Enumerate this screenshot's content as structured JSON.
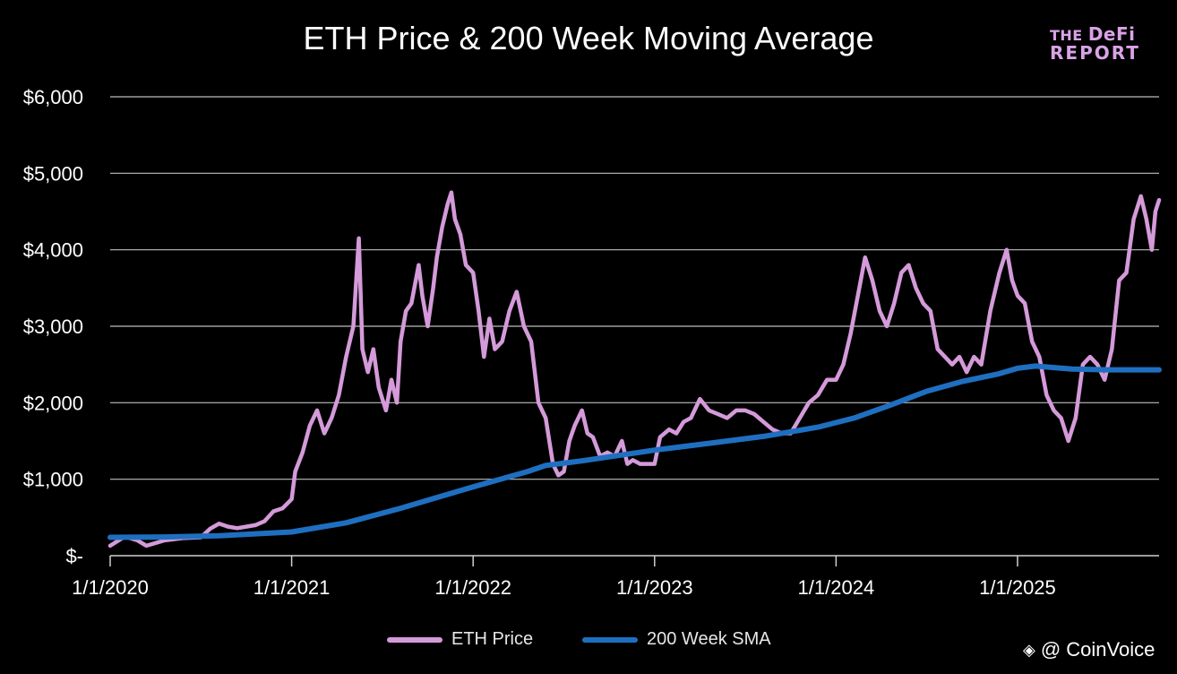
{
  "chart_data": {
    "type": "line",
    "title": "ETH Price & 200 Week Moving Average",
    "xlabel": "",
    "ylabel": "",
    "ylim": [
      0,
      6000
    ],
    "y_ticks": [
      0,
      1000,
      2000,
      3000,
      4000,
      5000,
      6000
    ],
    "y_tick_labels": [
      "$-",
      "$1,000",
      "$2,000",
      "$3,000",
      "$4,000",
      "$5,000",
      "$6,000"
    ],
    "x_range": [
      2020.0,
      2025.78
    ],
    "x_ticks": [
      2020,
      2021,
      2022,
      2023,
      2024,
      2025
    ],
    "x_tick_labels": [
      "1/1/2020",
      "1/1/2021",
      "1/1/2022",
      "1/1/2023",
      "1/1/2024",
      "1/1/2025"
    ],
    "grid": "horizontal",
    "legend_position": "bottom",
    "series": [
      {
        "name": "ETH Price",
        "color": "#d49ad9",
        "points": [
          [
            2020.0,
            130
          ],
          [
            2020.08,
            250
          ],
          [
            2020.15,
            200
          ],
          [
            2020.2,
            130
          ],
          [
            2020.3,
            200
          ],
          [
            2020.4,
            230
          ],
          [
            2020.5,
            240
          ],
          [
            2020.55,
            350
          ],
          [
            2020.6,
            420
          ],
          [
            2020.65,
            380
          ],
          [
            2020.7,
            360
          ],
          [
            2020.75,
            380
          ],
          [
            2020.8,
            400
          ],
          [
            2020.85,
            450
          ],
          [
            2020.9,
            580
          ],
          [
            2020.95,
            620
          ],
          [
            2021.0,
            740
          ],
          [
            2021.02,
            1100
          ],
          [
            2021.06,
            1350
          ],
          [
            2021.1,
            1700
          ],
          [
            2021.14,
            1900
          ],
          [
            2021.18,
            1600
          ],
          [
            2021.22,
            1800
          ],
          [
            2021.26,
            2100
          ],
          [
            2021.3,
            2600
          ],
          [
            2021.34,
            3000
          ],
          [
            2021.37,
            4150
          ],
          [
            2021.39,
            2700
          ],
          [
            2021.42,
            2400
          ],
          [
            2021.45,
            2700
          ],
          [
            2021.48,
            2200
          ],
          [
            2021.52,
            1900
          ],
          [
            2021.55,
            2300
          ],
          [
            2021.58,
            2000
          ],
          [
            2021.6,
            2800
          ],
          [
            2021.63,
            3200
          ],
          [
            2021.66,
            3300
          ],
          [
            2021.7,
            3800
          ],
          [
            2021.72,
            3400
          ],
          [
            2021.75,
            3000
          ],
          [
            2021.78,
            3500
          ],
          [
            2021.8,
            3900
          ],
          [
            2021.83,
            4300
          ],
          [
            2021.86,
            4600
          ],
          [
            2021.88,
            4750
          ],
          [
            2021.9,
            4400
          ],
          [
            2021.93,
            4200
          ],
          [
            2021.96,
            3800
          ],
          [
            2022.0,
            3700
          ],
          [
            2022.03,
            3200
          ],
          [
            2022.06,
            2600
          ],
          [
            2022.09,
            3100
          ],
          [
            2022.12,
            2700
          ],
          [
            2022.16,
            2800
          ],
          [
            2022.2,
            3200
          ],
          [
            2022.24,
            3450
          ],
          [
            2022.28,
            3000
          ],
          [
            2022.32,
            2800
          ],
          [
            2022.36,
            2000
          ],
          [
            2022.4,
            1800
          ],
          [
            2022.44,
            1200
          ],
          [
            2022.47,
            1050
          ],
          [
            2022.5,
            1100
          ],
          [
            2022.53,
            1500
          ],
          [
            2022.56,
            1700
          ],
          [
            2022.6,
            1900
          ],
          [
            2022.63,
            1600
          ],
          [
            2022.66,
            1550
          ],
          [
            2022.7,
            1300
          ],
          [
            2022.74,
            1350
          ],
          [
            2022.78,
            1300
          ],
          [
            2022.82,
            1500
          ],
          [
            2022.85,
            1200
          ],
          [
            2022.88,
            1250
          ],
          [
            2022.92,
            1200
          ],
          [
            2022.96,
            1200
          ],
          [
            2023.0,
            1200
          ],
          [
            2023.03,
            1550
          ],
          [
            2023.08,
            1650
          ],
          [
            2023.12,
            1600
          ],
          [
            2023.16,
            1750
          ],
          [
            2023.2,
            1800
          ],
          [
            2023.25,
            2050
          ],
          [
            2023.3,
            1900
          ],
          [
            2023.35,
            1850
          ],
          [
            2023.4,
            1800
          ],
          [
            2023.45,
            1900
          ],
          [
            2023.5,
            1900
          ],
          [
            2023.55,
            1850
          ],
          [
            2023.6,
            1750
          ],
          [
            2023.65,
            1650
          ],
          [
            2023.7,
            1600
          ],
          [
            2023.75,
            1600
          ],
          [
            2023.8,
            1800
          ],
          [
            2023.85,
            2000
          ],
          [
            2023.9,
            2100
          ],
          [
            2023.95,
            2300
          ],
          [
            2024.0,
            2300
          ],
          [
            2024.04,
            2500
          ],
          [
            2024.08,
            2900
          ],
          [
            2024.12,
            3400
          ],
          [
            2024.16,
            3900
          ],
          [
            2024.2,
            3600
          ],
          [
            2024.24,
            3200
          ],
          [
            2024.28,
            3000
          ],
          [
            2024.32,
            3300
          ],
          [
            2024.36,
            3700
          ],
          [
            2024.4,
            3800
          ],
          [
            2024.44,
            3500
          ],
          [
            2024.48,
            3300
          ],
          [
            2024.52,
            3200
          ],
          [
            2024.56,
            2700
          ],
          [
            2024.6,
            2600
          ],
          [
            2024.64,
            2500
          ],
          [
            2024.68,
            2600
          ],
          [
            2024.72,
            2400
          ],
          [
            2024.76,
            2600
          ],
          [
            2024.8,
            2500
          ],
          [
            2024.85,
            3200
          ],
          [
            2024.9,
            3700
          ],
          [
            2024.94,
            4000
          ],
          [
            2024.97,
            3600
          ],
          [
            2025.0,
            3400
          ],
          [
            2025.04,
            3300
          ],
          [
            2025.08,
            2800
          ],
          [
            2025.12,
            2600
          ],
          [
            2025.16,
            2100
          ],
          [
            2025.2,
            1900
          ],
          [
            2025.24,
            1800
          ],
          [
            2025.28,
            1500
          ],
          [
            2025.32,
            1800
          ],
          [
            2025.36,
            2500
          ],
          [
            2025.4,
            2600
          ],
          [
            2025.44,
            2500
          ],
          [
            2025.48,
            2300
          ],
          [
            2025.52,
            2700
          ],
          [
            2025.56,
            3600
          ],
          [
            2025.6,
            3700
          ],
          [
            2025.64,
            4400
          ],
          [
            2025.68,
            4700
          ],
          [
            2025.71,
            4400
          ],
          [
            2025.74,
            4000
          ],
          [
            2025.76,
            4500
          ],
          [
            2025.78,
            4650
          ]
        ]
      },
      {
        "name": "200 Week SMA",
        "color": "#1f6fc0",
        "points": [
          [
            2020.0,
            240
          ],
          [
            2020.3,
            245
          ],
          [
            2020.6,
            260
          ],
          [
            2021.0,
            310
          ],
          [
            2021.3,
            430
          ],
          [
            2021.6,
            620
          ],
          [
            2021.8,
            760
          ],
          [
            2022.0,
            900
          ],
          [
            2022.3,
            1100
          ],
          [
            2022.4,
            1180
          ],
          [
            2022.6,
            1240
          ],
          [
            2022.8,
            1310
          ],
          [
            2023.0,
            1380
          ],
          [
            2023.3,
            1470
          ],
          [
            2023.6,
            1560
          ],
          [
            2023.9,
            1680
          ],
          [
            2024.1,
            1800
          ],
          [
            2024.3,
            1970
          ],
          [
            2024.5,
            2150
          ],
          [
            2024.7,
            2280
          ],
          [
            2024.9,
            2380
          ],
          [
            2025.0,
            2450
          ],
          [
            2025.1,
            2480
          ],
          [
            2025.2,
            2460
          ],
          [
            2025.3,
            2440
          ],
          [
            2025.5,
            2430
          ],
          [
            2025.78,
            2430
          ]
        ]
      }
    ]
  },
  "logo": {
    "line1_small": "THE",
    "line1_big": "DeFi",
    "line2": "REPORT"
  },
  "watermark": {
    "icon": "binance-icon",
    "text": "@ CoinVoice"
  }
}
